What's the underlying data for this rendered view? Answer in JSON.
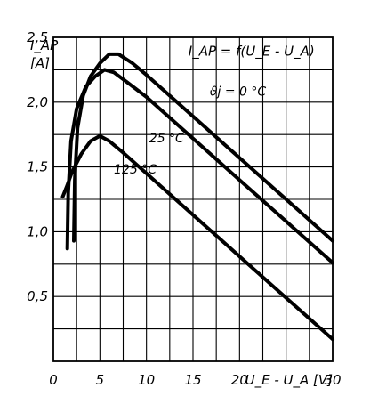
{
  "chart_data": {
    "type": "line",
    "title": "",
    "formula": "I_AP = f(U_E - U_A)",
    "ylabel_top": "I_AP",
    "ylabel_unit": "[A]",
    "xlabel": "U_E - U_A  [V]",
    "xlim": [
      0,
      30
    ],
    "ylim": [
      0,
      2.5
    ],
    "x_ticks": [
      "0",
      "5",
      "10",
      "15",
      "20",
      "30"
    ],
    "y_ticks": [
      "0,5",
      "1,0",
      "1,5",
      "2,0",
      "2,5"
    ],
    "grid": true,
    "series": [
      {
        "name": "ϑj = 0 °C",
        "points": [
          [
            2.2,
            0.93
          ],
          [
            2.3,
            1.4
          ],
          [
            2.6,
            1.8
          ],
          [
            3.2,
            2.05
          ],
          [
            4.0,
            2.2
          ],
          [
            5.0,
            2.3
          ],
          [
            6.0,
            2.37
          ],
          [
            7.0,
            2.37
          ],
          [
            8.5,
            2.3
          ],
          [
            10,
            2.21
          ],
          [
            15,
            1.89
          ],
          [
            20,
            1.57
          ],
          [
            25,
            1.25
          ],
          [
            30,
            0.93
          ]
        ]
      },
      {
        "name": "25 °C",
        "points": [
          [
            1.5,
            0.87
          ],
          [
            1.6,
            1.3
          ],
          [
            1.9,
            1.7
          ],
          [
            2.5,
            1.95
          ],
          [
            3.5,
            2.12
          ],
          [
            4.5,
            2.2
          ],
          [
            5.5,
            2.25
          ],
          [
            6.5,
            2.23
          ],
          [
            8,
            2.15
          ],
          [
            10,
            2.04
          ],
          [
            15,
            1.72
          ],
          [
            20,
            1.4
          ],
          [
            25,
            1.08
          ],
          [
            30,
            0.76
          ]
        ]
      },
      {
        "name": "125 °C",
        "points": [
          [
            1.0,
            1.27
          ],
          [
            1.5,
            1.36
          ],
          [
            2.0,
            1.46
          ],
          [
            3.0,
            1.6
          ],
          [
            4.0,
            1.7
          ],
          [
            5.0,
            1.74
          ],
          [
            6.0,
            1.7
          ],
          [
            7.5,
            1.61
          ],
          [
            10,
            1.45
          ],
          [
            15,
            1.13
          ],
          [
            20,
            0.81
          ],
          [
            25,
            0.49
          ],
          [
            30,
            0.17
          ]
        ]
      }
    ],
    "series_labels": [
      "ϑj = 0 °C",
      "25 °C",
      "125 °C"
    ],
    "label_positions": [
      {
        "x": 16.8,
        "y": 2.05
      },
      {
        "x": 10.3,
        "y": 1.69
      },
      {
        "x": 6.5,
        "y": 1.45
      }
    ],
    "grid_x": [
      0,
      2.5,
      5,
      7.5,
      10,
      12.5,
      15,
      17.5,
      20,
      22.5,
      25,
      27.5,
      30
    ],
    "grid_y": [
      0,
      0.25,
      0.5,
      0.75,
      1.0,
      1.25,
      1.5,
      1.75,
      2.0,
      2.25,
      2.5
    ]
  }
}
